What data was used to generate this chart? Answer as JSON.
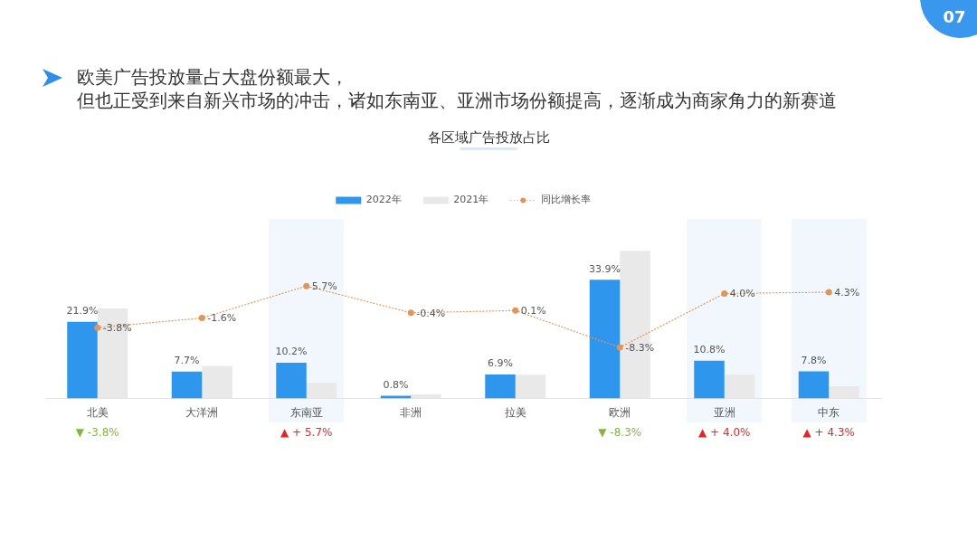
{
  "chart_data": {
    "type": "bar",
    "title": "各区域广告投放占比",
    "categories": [
      "北美",
      "大洋洲",
      "东南亚",
      "非洲",
      "拉美",
      "欧洲",
      "亚洲",
      "中东"
    ],
    "series": [
      {
        "name": "2022年",
        "color": "#2f96ee",
        "values": [
          21.9,
          7.7,
          10.2,
          0.8,
          6.9,
          33.9,
          10.8,
          7.8
        ],
        "value_labels": [
          "21.9%",
          "7.7%",
          "10.2%",
          "0.8%",
          "6.9%",
          "33.9%",
          "10.8%",
          "7.8%"
        ]
      },
      {
        "name": "2021年",
        "color": "#e9e9e9",
        "values": [
          25.7,
          9.3,
          4.5,
          1.2,
          6.8,
          42.2,
          6.8,
          3.5
        ]
      },
      {
        "name": "同比增长率",
        "type": "line",
        "axis": "y2",
        "color": "#e0955a",
        "values": [
          -3.8,
          -1.6,
          5.7,
          -0.4,
          0.1,
          -8.3,
          4.0,
          4.3
        ],
        "value_labels": [
          "-3.8%",
          "-1.6%",
          "5.7%",
          "-0.4%",
          "0.1%",
          "-8.3%",
          "4.0%",
          "4.3%"
        ]
      }
    ],
    "tick_labels": "x",
    "legend": "top",
    "marker": "circle",
    "line_style": "dotted",
    "annotations": [
      "欧美广告投放量占大盘份额最大，",
      "但也正受到来自新兴市场的冲击，诸如东南亚、亚洲市场份额提高，逐渐成为商家角力的新赛道",
      "07",
      "▼ -3.8%",
      "▲ + 5.7%",
      "▼ -8.3%",
      "▲ + 4.0%",
      "▲ + 4.3%"
    ]
  }
}
